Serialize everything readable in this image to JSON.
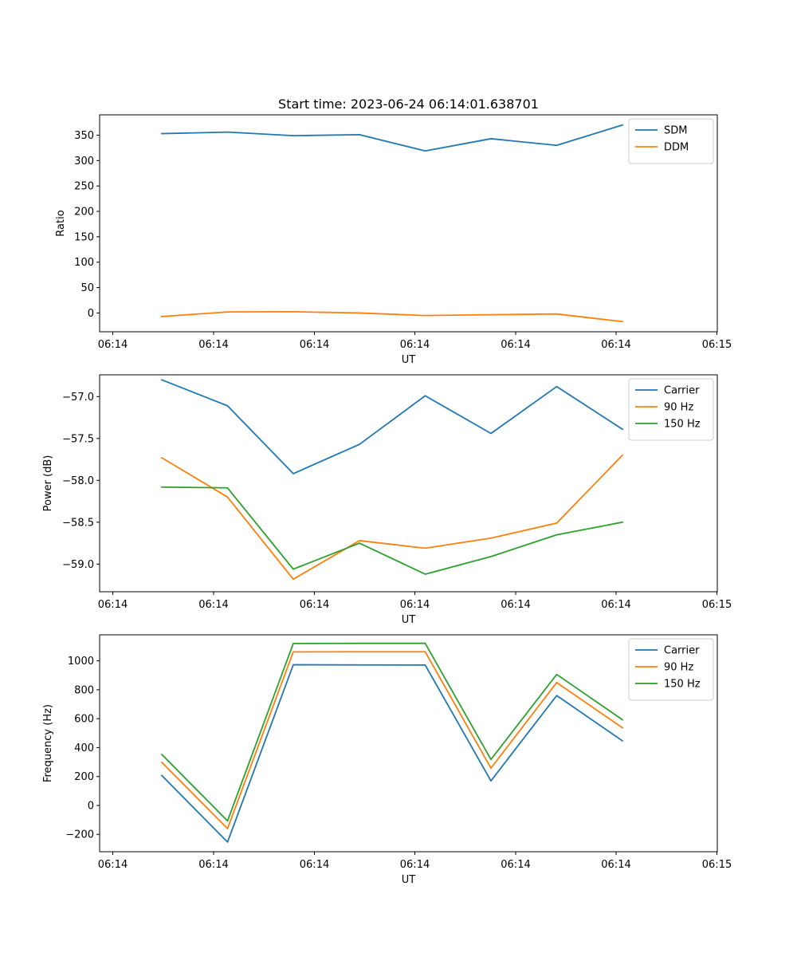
{
  "figure": {
    "title": "Start time: 2023-06-24 06:14:01.638701"
  },
  "chart_data": [
    {
      "type": "line",
      "title": "Start time: 2023-06-24 06:14:01.638701",
      "xlabel": "UT",
      "ylabel": "Ratio",
      "x_tick_labels": [
        "06:14",
        "06:14",
        "06:14",
        "06:14",
        "06:14",
        "06:14",
        "06:15"
      ],
      "y_ticks": [
        0,
        50,
        100,
        150,
        200,
        250,
        300,
        350
      ],
      "ylim": [
        -37,
        390
      ],
      "grid": false,
      "legend_position": "upper right",
      "series": [
        {
          "name": "SDM",
          "color": "#1f77b4",
          "values": [
            353,
            356,
            349,
            351,
            319,
            343,
            330,
            370
          ]
        },
        {
          "name": "DDM",
          "color": "#ff7f0e",
          "values": [
            -7,
            2,
            2.5,
            0,
            -5,
            -3.5,
            -2,
            -17
          ]
        }
      ]
    },
    {
      "type": "line",
      "xlabel": "UT",
      "ylabel": "Power (dB)",
      "x_tick_labels": [
        "06:14",
        "06:14",
        "06:14",
        "06:14",
        "06:14",
        "06:14",
        "06:15"
      ],
      "y_ticks": [
        -59.0,
        -58.5,
        -58.0,
        -57.5,
        -57.0
      ],
      "y_tick_labels": [
        "−59.0",
        "−58.5",
        "−58.0",
        "−57.5",
        "−57.0"
      ],
      "ylim": [
        -59.33,
        -56.74
      ],
      "grid": false,
      "legend_position": "upper right",
      "series": [
        {
          "name": "Carrier",
          "color": "#1f77b4",
          "values": [
            -56.8,
            -57.11,
            -57.92,
            -57.57,
            -56.99,
            -57.44,
            -56.88,
            -57.39
          ]
        },
        {
          "name": "90 Hz",
          "color": "#ff7f0e",
          "values": [
            -57.73,
            -58.2,
            -59.18,
            -58.72,
            -58.81,
            -58.69,
            -58.51,
            -57.7
          ]
        },
        {
          "name": "150 Hz",
          "color": "#2ca02c",
          "values": [
            -58.08,
            -58.09,
            -59.06,
            -58.75,
            -59.12,
            -58.91,
            -58.65,
            -58.5
          ]
        }
      ]
    },
    {
      "type": "line",
      "xlabel": "UT",
      "ylabel": "Frequency (Hz)",
      "x_tick_labels": [
        "06:14",
        "06:14",
        "06:14",
        "06:14",
        "06:14",
        "06:14",
        "06:15"
      ],
      "y_ticks": [
        -200,
        0,
        200,
        400,
        600,
        800,
        1000
      ],
      "y_tick_labels": [
        "−200",
        "0",
        "200",
        "400",
        "600",
        "800",
        "1000"
      ],
      "ylim": [
        -320,
        1180
      ],
      "grid": false,
      "legend_position": "upper right",
      "series": [
        {
          "name": "Carrier",
          "color": "#1f77b4",
          "values": [
            207,
            -253,
            973,
            972,
            971,
            170,
            760,
            447
          ]
        },
        {
          "name": "90 Hz",
          "color": "#ff7f0e",
          "values": [
            298,
            -160,
            1062,
            1063,
            1063,
            258,
            850,
            537
          ]
        },
        {
          "name": "150 Hz",
          "color": "#2ca02c",
          "values": [
            353,
            -107,
            1120,
            1121,
            1121,
            318,
            906,
            593
          ]
        }
      ]
    }
  ]
}
